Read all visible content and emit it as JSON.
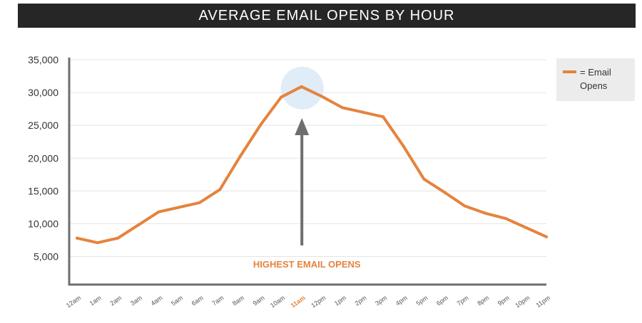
{
  "header": {
    "title": "AVERAGE EMAIL OPENS BY HOUR"
  },
  "legend": {
    "label": "= Email Opens"
  },
  "colors": {
    "line": "#e5833d",
    "arrow": "#6e6e6e",
    "highlight": "#dbe9f6",
    "header_bg": "#262626"
  },
  "chart_data": {
    "type": "line",
    "title": "AVERAGE EMAIL OPENS BY HOUR",
    "xlabel": "",
    "ylabel": "",
    "categories": [
      "12am",
      "1am",
      "2am",
      "3am",
      "4am",
      "5am",
      "6am",
      "7am",
      "8am",
      "9am",
      "10am",
      "11am",
      "12pm",
      "1pm",
      "2pm",
      "3pm",
      "4pm",
      "5pm",
      "6pm",
      "7pm",
      "8pm",
      "9pm",
      "10pm",
      "11pm"
    ],
    "series": [
      {
        "name": "= Email Opens",
        "values": [
          7800,
          7100,
          7800,
          9800,
          11800,
          12500,
          13200,
          15200,
          20300,
          25100,
          29300,
          30900,
          29400,
          27700,
          27000,
          26300,
          21800,
          16800,
          14800,
          12700,
          11600,
          10800,
          9400,
          8000
        ]
      }
    ],
    "ylim": [
      0,
      35000
    ],
    "yticks": [
      5000,
      10000,
      15000,
      20000,
      25000,
      30000,
      35000
    ],
    "ytick_labels": [
      "5,000",
      "10,000",
      "15,000",
      "20,000",
      "25,000",
      "30,000",
      "35,000"
    ],
    "highlight_category": "11am",
    "annotation": "HIGHEST EMAIL OPENS",
    "grid": true,
    "legend_position": "right"
  }
}
